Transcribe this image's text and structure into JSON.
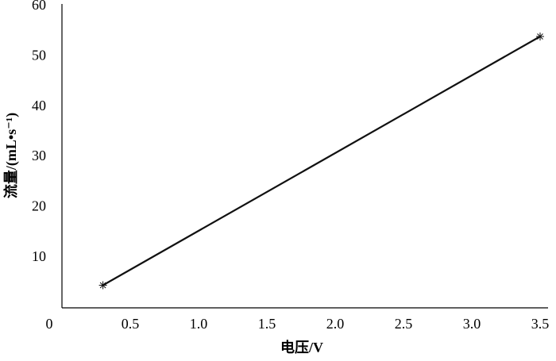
{
  "chart_data": {
    "type": "line",
    "x_label": "电压/V",
    "y_label": "流量/(mL•s⁻¹)",
    "x": [
      0.3,
      3.5
    ],
    "series": [
      {
        "color": "#111111",
        "values": [
          4.5,
          54
        ]
      }
    ],
    "xlim": [
      0,
      3.5
    ],
    "xticks": [
      0,
      0.5,
      {
        "value": 1,
        "label": "1.0"
      },
      1.5,
      {
        "value": 2,
        "label": "2.0"
      },
      2.5,
      {
        "value": 3,
        "label": "3.0"
      },
      3.5
    ],
    "ylim": [
      0,
      60
    ],
    "yticks": [
      10,
      20,
      30,
      40,
      50,
      60
    ],
    "grid": false
  }
}
